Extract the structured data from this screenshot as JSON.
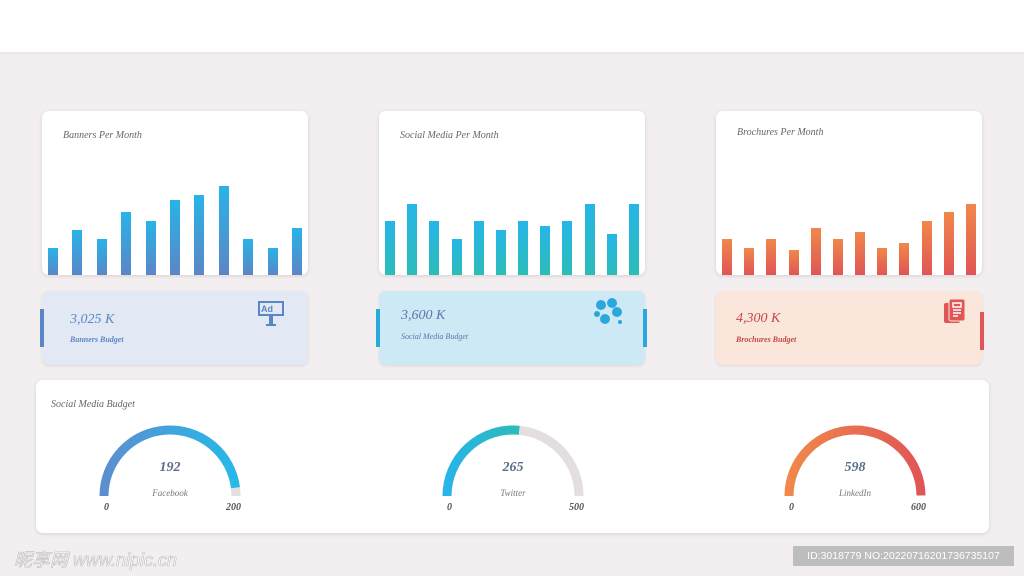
{
  "charts": [
    {
      "title": "Banners Per Month",
      "values": [
        27,
        45,
        36,
        63,
        54,
        75,
        80,
        89,
        36,
        27,
        47
      ],
      "color_top": "#27b4e8",
      "color_bottom": "#5b86c6"
    },
    {
      "title": "Social Media Per Month",
      "values": [
        54,
        71,
        54,
        36,
        54,
        45,
        54,
        49,
        54,
        71,
        41,
        71
      ],
      "color_top": "#26b6e8",
      "color_bottom": "#2cbcb8"
    },
    {
      "title": "Brochures Per Month",
      "values": [
        36,
        27,
        36,
        25,
        47,
        36,
        43,
        27,
        32,
        54,
        63,
        71
      ],
      "color_top": "#f0884a",
      "color_bottom": "#e05555"
    }
  ],
  "budgets": [
    {
      "value": "3,025 K",
      "label": "Banners Budget",
      "icon": "billboard-ad-icon",
      "icon_text": "Ad",
      "color": "#5b86c6",
      "bg": "#e2e8f4"
    },
    {
      "value": "3,600 K",
      "label": "Social Media Budget",
      "icon": "social-network-icon",
      "color": "#2aa8dc",
      "bg": "#cde9f5"
    },
    {
      "value": "4,300 K",
      "label": "Brochures  Budget",
      "icon": "brochure-icon",
      "color": "#e05555",
      "bg": "#fbe6dc"
    }
  ],
  "social": {
    "title": "Social Media Budget",
    "gauges": [
      {
        "name": "Facebook",
        "value": 192,
        "min": 0,
        "max": 200,
        "c1": "#5b8fd0",
        "c2": "#27b8e8"
      },
      {
        "name": "Twitter",
        "value": 265,
        "min": 0,
        "max": 500,
        "c1": "#27b4e8",
        "c2": "#2cbcb8"
      },
      {
        "name": "LinkedIn",
        "value": 598,
        "min": 0,
        "max": 600,
        "c1": "#f0884a",
        "c2": "#e05555"
      }
    ]
  },
  "watermark": {
    "logo": "昵享网 www.nipic.cn",
    "id": "ID:3018779 NO:20220716201736735107"
  }
}
